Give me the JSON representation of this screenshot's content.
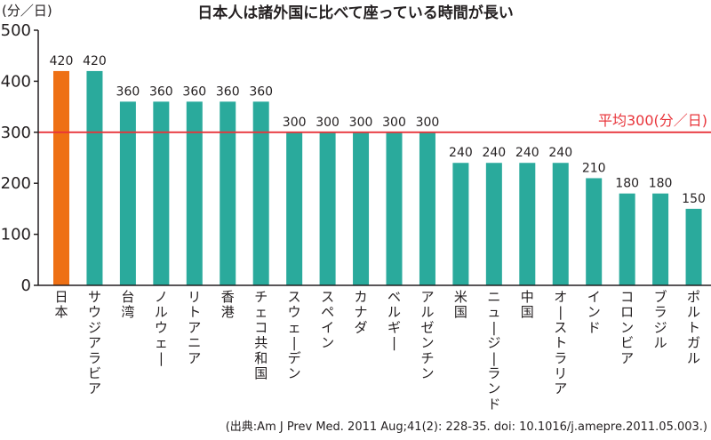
{
  "chart_data": {
    "type": "bar",
    "title": "日本人は諸外国に比べて座っている時間が長い",
    "ylabel": "(分／日)",
    "xlabel": "",
    "ylim": [
      0,
      500
    ],
    "yticks": [
      0,
      100,
      200,
      300,
      400,
      500
    ],
    "grid": false,
    "categories": [
      "日本",
      "サウジアラビア",
      "台湾",
      "ノルウェー",
      "リトアニア",
      "香港",
      "チェコ共和国",
      "スウェーデン",
      "スペイン",
      "カナダ",
      "ベルギー",
      "アルゼンチン",
      "米国",
      "ニュージーランド",
      "中国",
      "オーストラリア",
      "インド",
      "コロンビア",
      "ブラジル",
      "ポルトガル"
    ],
    "values": [
      420,
      420,
      360,
      360,
      360,
      360,
      360,
      300,
      300,
      300,
      300,
      300,
      240,
      240,
      240,
      240,
      210,
      180,
      180,
      150
    ],
    "data_labels": [
      "420",
      "420",
      "360",
      "360",
      "360",
      "360",
      "360",
      "300",
      "300",
      "300",
      "300",
      "300",
      "240",
      "240",
      "240",
      "240",
      "210",
      "180",
      "180",
      "150"
    ],
    "highlight_index": 0,
    "reference_line": {
      "value": 300,
      "label": "平均300(分／日)"
    },
    "colors": {
      "bar": "#2aaa9c",
      "highlight": "#ee7014",
      "reference_line": "#e8343a",
      "axis": "#231f20"
    },
    "source": "(出典:Am J Prev Med. 2011 Aug;41(2): 228-35. doi: 10.1016/j.amepre.2011.05.003.)"
  }
}
